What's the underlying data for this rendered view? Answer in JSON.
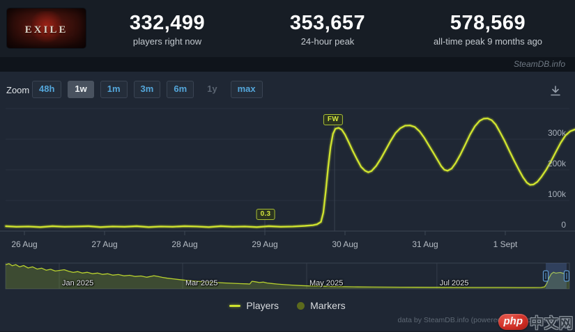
{
  "header": {
    "logo_text": "EXILE",
    "stats": [
      {
        "value": "332,499",
        "label": "players right now"
      },
      {
        "value": "353,657",
        "label": "24-hour peak"
      },
      {
        "value": "578,569",
        "label": "all-time peak 9 months ago"
      }
    ]
  },
  "branding": {
    "site": "SteamDB.info"
  },
  "toolbar": {
    "zoom_label": "Zoom",
    "buttons": [
      {
        "label": "48h",
        "state": "normal"
      },
      {
        "label": "1w",
        "state": "active"
      },
      {
        "label": "1m",
        "state": "normal"
      },
      {
        "label": "3m",
        "state": "normal"
      },
      {
        "label": "6m",
        "state": "normal"
      },
      {
        "label": "1y",
        "state": "disabled"
      },
      {
        "label": "max",
        "state": "normal"
      }
    ]
  },
  "chart_data": {
    "type": "line",
    "series": [
      {
        "name": "Players",
        "color": "#cfe32f",
        "x_unit": "days since 26 Aug 00:00",
        "y_unit": "thousands of players",
        "points": [
          [
            -0.23,
            16
          ],
          [
            -0.1,
            14
          ],
          [
            0.05,
            15
          ],
          [
            0.2,
            13
          ],
          [
            0.35,
            16
          ],
          [
            0.5,
            14
          ],
          [
            0.65,
            15
          ],
          [
            0.8,
            16
          ],
          [
            0.95,
            13
          ],
          [
            1.1,
            15
          ],
          [
            1.25,
            14
          ],
          [
            1.4,
            16
          ],
          [
            1.55,
            13
          ],
          [
            1.7,
            15
          ],
          [
            1.85,
            14
          ],
          [
            2.0,
            16
          ],
          [
            2.15,
            15
          ],
          [
            2.3,
            13
          ],
          [
            2.45,
            16
          ],
          [
            2.6,
            14
          ],
          [
            2.75,
            15
          ],
          [
            2.9,
            13
          ],
          [
            3.05,
            16
          ],
          [
            3.2,
            14
          ],
          [
            3.35,
            15
          ],
          [
            3.5,
            17
          ],
          [
            3.6,
            19
          ],
          [
            3.65,
            22
          ],
          [
            3.7,
            30
          ],
          [
            3.73,
            60
          ],
          [
            3.76,
            130
          ],
          [
            3.79,
            210
          ],
          [
            3.82,
            275
          ],
          [
            3.85,
            318
          ],
          [
            3.88,
            334
          ],
          [
            3.92,
            337
          ],
          [
            3.96,
            331
          ],
          [
            4.0,
            315
          ],
          [
            4.05,
            288
          ],
          [
            4.1,
            260
          ],
          [
            4.15,
            234
          ],
          [
            4.2,
            210
          ],
          [
            4.25,
            197
          ],
          [
            4.29,
            192
          ],
          [
            4.33,
            196
          ],
          [
            4.39,
            213
          ],
          [
            4.45,
            238
          ],
          [
            4.51,
            266
          ],
          [
            4.57,
            295
          ],
          [
            4.63,
            320
          ],
          [
            4.69,
            336
          ],
          [
            4.75,
            344
          ],
          [
            4.81,
            345
          ],
          [
            4.87,
            340
          ],
          [
            4.93,
            326
          ],
          [
            4.99,
            304
          ],
          [
            5.05,
            278
          ],
          [
            5.11,
            252
          ],
          [
            5.16,
            230
          ],
          [
            5.2,
            212
          ],
          [
            5.24,
            200
          ],
          [
            5.28,
            197
          ],
          [
            5.33,
            204
          ],
          [
            5.38,
            222
          ],
          [
            5.44,
            250
          ],
          [
            5.5,
            282
          ],
          [
            5.56,
            315
          ],
          [
            5.62,
            342
          ],
          [
            5.68,
            360
          ],
          [
            5.73,
            367
          ],
          [
            5.78,
            368
          ],
          [
            5.83,
            362
          ],
          [
            5.88,
            348
          ],
          [
            5.93,
            325
          ],
          [
            5.99,
            295
          ],
          [
            6.05,
            262
          ],
          [
            6.11,
            230
          ],
          [
            6.17,
            200
          ],
          [
            6.22,
            176
          ],
          [
            6.27,
            158
          ],
          [
            6.31,
            151
          ],
          [
            6.35,
            152
          ],
          [
            6.4,
            161
          ],
          [
            6.45,
            177
          ],
          [
            6.51,
            200
          ],
          [
            6.57,
            228
          ],
          [
            6.63,
            258
          ],
          [
            6.69,
            288
          ],
          [
            6.75,
            312
          ],
          [
            6.81,
            326
          ],
          [
            6.87,
            332
          ]
        ]
      }
    ],
    "x_ticks": [
      "26 Aug",
      "27 Aug",
      "28 Aug",
      "29 Aug",
      "30 Aug",
      "31 Aug",
      "1 Sept"
    ],
    "y_ticks": [
      {
        "v": 0,
        "label": "0"
      },
      {
        "v": 100,
        "label": "100k"
      },
      {
        "v": 200,
        "label": "200k"
      },
      {
        "v": 300,
        "label": "300k"
      }
    ],
    "ylim_thousands": [
      0,
      400
    ],
    "grid": true,
    "markers": [
      {
        "label": "0.3",
        "t": 3.0
      },
      {
        "label": "FW",
        "t": 3.87
      }
    ],
    "navigator": {
      "labels": [
        {
          "label": "Jan 2025",
          "f": 0.0952
        },
        {
          "label": "Mar 2025",
          "f": 0.314
        },
        {
          "label": "May 2025",
          "f": 0.534
        },
        {
          "label": "Jul 2025",
          "f": 0.765
        }
      ],
      "selection": {
        "from": 0.958,
        "to": 0.995
      },
      "points": [
        [
          0.0,
          545
        ],
        [
          0.006,
          565
        ],
        [
          0.012,
          520
        ],
        [
          0.018,
          545
        ],
        [
          0.025,
          495
        ],
        [
          0.032,
          525
        ],
        [
          0.04,
          470
        ],
        [
          0.048,
          495
        ],
        [
          0.056,
          445
        ],
        [
          0.064,
          465
        ],
        [
          0.072,
          420
        ],
        [
          0.08,
          440
        ],
        [
          0.088,
          400
        ],
        [
          0.096,
          415
        ],
        [
          0.104,
          430
        ],
        [
          0.112,
          395
        ],
        [
          0.12,
          370
        ],
        [
          0.128,
          388
        ],
        [
          0.136,
          355
        ],
        [
          0.145,
          372
        ],
        [
          0.154,
          340
        ],
        [
          0.163,
          355
        ],
        [
          0.172,
          325
        ],
        [
          0.181,
          340
        ],
        [
          0.19,
          308
        ],
        [
          0.2,
          322
        ],
        [
          0.21,
          292
        ],
        [
          0.22,
          305
        ],
        [
          0.23,
          278
        ],
        [
          0.24,
          290
        ],
        [
          0.25,
          262
        ],
        [
          0.257,
          278
        ],
        [
          0.263,
          296
        ],
        [
          0.27,
          280
        ],
        [
          0.278,
          258
        ],
        [
          0.287,
          240
        ],
        [
          0.297,
          225
        ],
        [
          0.308,
          208
        ],
        [
          0.32,
          192
        ],
        [
          0.333,
          178
        ],
        [
          0.346,
          165
        ],
        [
          0.36,
          152
        ],
        [
          0.374,
          142
        ],
        [
          0.388,
          133
        ],
        [
          0.402,
          125
        ],
        [
          0.416,
          118
        ],
        [
          0.428,
          112
        ],
        [
          0.433,
          108
        ],
        [
          0.437,
          170
        ],
        [
          0.443,
          160
        ],
        [
          0.45,
          142
        ],
        [
          0.457,
          152
        ],
        [
          0.464,
          132
        ],
        [
          0.472,
          120
        ],
        [
          0.482,
          108
        ],
        [
          0.494,
          95
        ],
        [
          0.508,
          84
        ],
        [
          0.524,
          74
        ],
        [
          0.54,
          66
        ],
        [
          0.558,
          59
        ],
        [
          0.578,
          53
        ],
        [
          0.6,
          48
        ],
        [
          0.624,
          44
        ],
        [
          0.65,
          41
        ],
        [
          0.676,
          39
        ],
        [
          0.702,
          37
        ],
        [
          0.728,
          36
        ],
        [
          0.754,
          35
        ],
        [
          0.78,
          34
        ],
        [
          0.806,
          33
        ],
        [
          0.832,
          32
        ],
        [
          0.858,
          31
        ],
        [
          0.884,
          31
        ],
        [
          0.91,
          30
        ],
        [
          0.936,
          30
        ],
        [
          0.95,
          31
        ],
        [
          0.956,
          45
        ],
        [
          0.96,
          120
        ],
        [
          0.964,
          250
        ],
        [
          0.968,
          340
        ],
        [
          0.972,
          372
        ],
        [
          0.976,
          352
        ],
        [
          0.98,
          362
        ],
        [
          0.984,
          368
        ],
        [
          0.988,
          352
        ],
        [
          0.992,
          342
        ],
        [
          0.996,
          350
        ],
        [
          1.0,
          358
        ]
      ]
    }
  },
  "legend": [
    {
      "label": "Players",
      "color": "#cfe32f"
    },
    {
      "label": "Markers",
      "color": "#5c6a1d"
    }
  ],
  "footer": {
    "credits": "data by SteamDB.info (powered by highcharts.com)"
  },
  "watermark": {
    "logo": "php",
    "text": "中文网"
  }
}
